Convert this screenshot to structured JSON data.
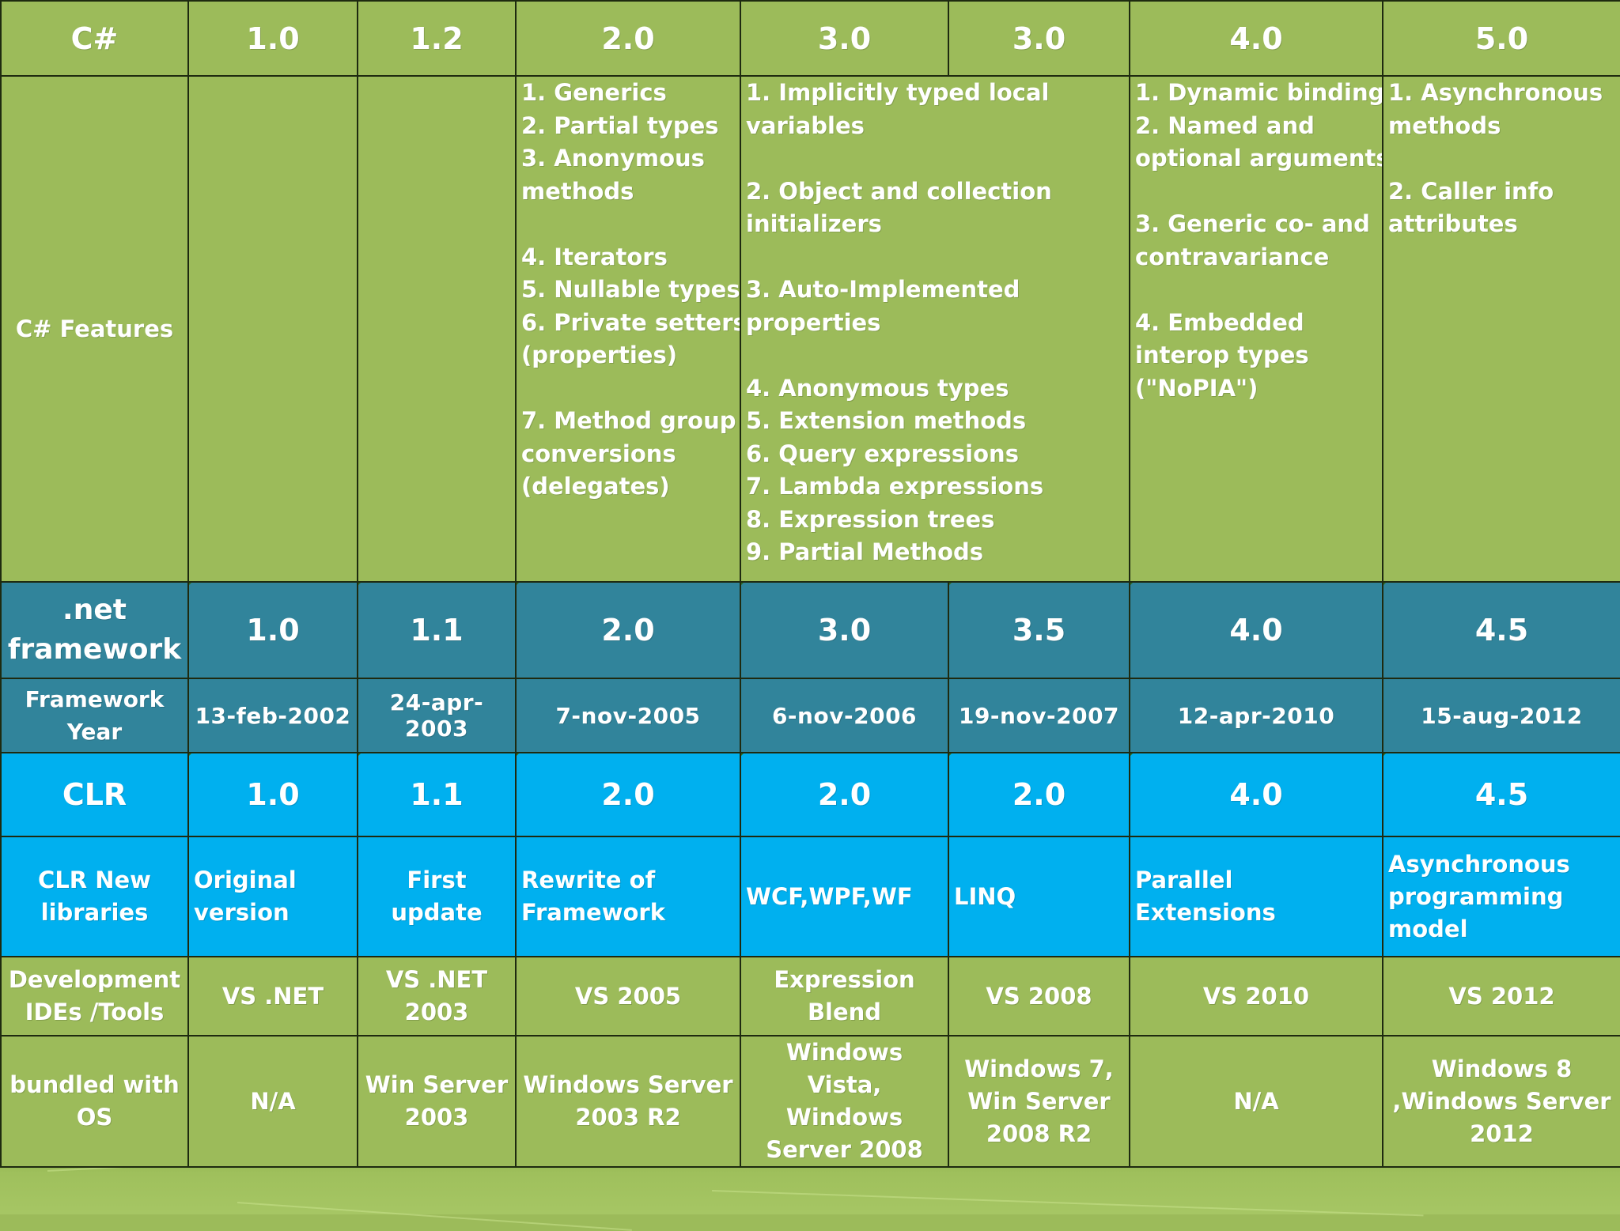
{
  "columns": [
    {
      "csharp": "1.0",
      "net": "1.0",
      "year": "13-feb-2002",
      "clr": "1.0",
      "libs": [
        "Original",
        "version"
      ],
      "ide": [
        "VS .NET"
      ],
      "os": [
        "N/A"
      ]
    },
    {
      "csharp": "1.2",
      "net": "1.1",
      "year": "24-apr-2003",
      "clr": "1.1",
      "libs": [
        "First update"
      ],
      "ide": [
        "VS .NET",
        "2003"
      ],
      "os": [
        "Win Server",
        "2003"
      ]
    },
    {
      "csharp": "2.0",
      "net": "2.0",
      "year": "7-nov-2005",
      "clr": "2.0",
      "libs": [
        "Rewrite of",
        "Framework"
      ],
      "ide": [
        "VS 2005"
      ],
      "os": [
        "Windows Server",
        "2003 R2"
      ]
    },
    {
      "csharp": "3.0",
      "net": "3.0",
      "year": "6-nov-2006",
      "clr": "2.0",
      "libs": [
        "WCF,WPF,WF"
      ],
      "ide": [
        "Expression",
        "Blend"
      ],
      "os": [
        "Windows",
        "Vista, Windows",
        "Server 2008"
      ]
    },
    {
      "csharp": "3.0",
      "net": "3.5",
      "year": "19-nov-2007",
      "clr": "2.0",
      "libs": [
        "LINQ"
      ],
      "ide": [
        "VS 2008"
      ],
      "os": [
        "Windows 7,",
        "Win Server",
        "2008 R2"
      ]
    },
    {
      "csharp": "4.0",
      "net": "4.0",
      "year": "12-apr-2010",
      "clr": "4.0",
      "libs": [
        "Parallel Extensions"
      ],
      "ide": [
        "VS 2010"
      ],
      "os": [
        "N/A"
      ]
    },
    {
      "csharp": "5.0",
      "net": "4.5",
      "year": "15-aug-2012",
      "clr": "4.5",
      "libs": [
        "Asynchronous",
        "programming",
        "model"
      ],
      "ide": [
        "VS 2012"
      ],
      "os": [
        "Windows 8",
        ",Windows Server",
        "2012"
      ]
    }
  ],
  "row_labels": {
    "csharp": "C#",
    "features": "C# Features",
    "net": [
      ".net",
      "framework"
    ],
    "year": [
      "Framework",
      "Year"
    ],
    "clr": "CLR",
    "libs": [
      "CLR New",
      "libraries"
    ],
    "ide": [
      "Development",
      "IDEs /Tools"
    ],
    "os": [
      "bundled with",
      "OS"
    ]
  },
  "features": {
    "v1_0": [],
    "v1_2": [],
    "v2_0": [
      "1. Generics",
      "2. Partial types",
      "3. Anonymous",
      "methods",
      "",
      "4. Iterators",
      "5. Nullable types",
      "6. Private setters",
      "(properties)",
      "",
      "7. Method group",
      "conversions",
      "(delegates)"
    ],
    "v3_0": [
      "1. Implicitly typed local",
      "variables",
      "",
      "2. Object and collection",
      "initializers",
      "",
      "3. Auto-Implemented",
      "properties",
      "",
      "4. Anonymous types",
      "5. Extension methods",
      "6. Query expressions",
      "7. Lambda expressions",
      "8. Expression trees",
      "9. Partial Methods"
    ],
    "v4_0": [
      "1. Dynamic binding",
      "2. Named and",
      "optional arguments",
      "",
      "3. Generic co- and",
      "contravariance",
      "",
      "4. Embedded",
      "interop types",
      "(\"NoPIA\")"
    ],
    "v5_0": [
      "1. Asynchronous",
      "methods",
      "",
      "2. Caller info",
      "attributes"
    ]
  },
  "colors": {
    "green": "#9cbb5a",
    "teal": "#31849b",
    "cyan": "#00b0ef",
    "border": "#1e2a10"
  }
}
